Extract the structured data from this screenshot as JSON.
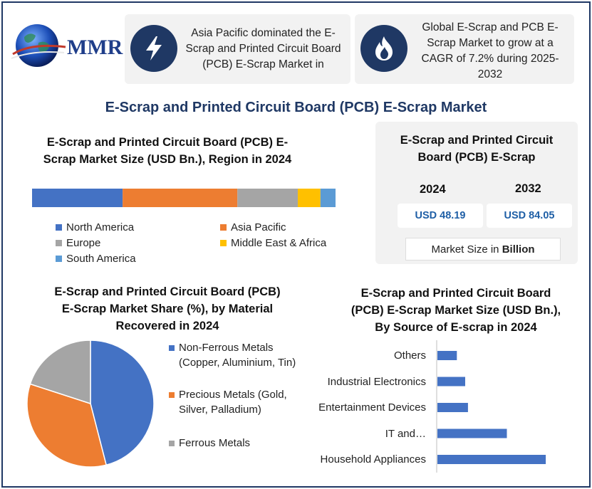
{
  "logo": {
    "text": "MMR",
    "icon": "globe-icon"
  },
  "info_boxes": [
    {
      "icon": "lightning-icon",
      "text": "Asia Pacific dominated the E-Scrap and Printed Circuit Board (PCB) E-Scrap Market in"
    },
    {
      "icon": "flame-icon",
      "text": "Global E-Scrap and PCB E-Scrap Market to grow at a CAGR of 7.2% during 2025-2032"
    }
  ],
  "main_title": "E-Scrap and Printed Circuit Board (PCB) E-Scrap Market",
  "region_section": {
    "title_line1": "E-Scrap and Printed Circuit Board (PCB) E-",
    "title_line2": "Scrap Market Size (USD Bn.), Region in 2024"
  },
  "market_panel": {
    "title_line1": "E-Scrap and Printed Circuit",
    "title_line2": "Board (PCB) E-Scrap",
    "year1": "2024",
    "year2": "2032",
    "value1": "USD 48.19",
    "value2": "USD 84.05",
    "size_label": "Market Size in ",
    "size_unit": "Billion"
  },
  "material_section": {
    "title_line1": "E-Scrap and Printed Circuit Board (PCB)",
    "title_line2": "E-Scrap Market Share (%), by Material",
    "title_line3": "Recovered in 2024"
  },
  "source_section": {
    "title_line1": "E-Scrap and Printed Circuit Board",
    "title_line2": "(PCB) E-Scrap Market Size (USD Bn.),",
    "title_line3": "By Source of E-scrap in 2024"
  },
  "chart_data": [
    {
      "type": "bar",
      "orientation": "horizontal-stacked",
      "title": "E-Scrap and Printed Circuit Board (PCB) E-Scrap Market Size (USD Bn.), Region in 2024",
      "series": [
        {
          "name": "North America",
          "value": 30,
          "color": "#4472c4"
        },
        {
          "name": "Asia Pacific",
          "value": 38,
          "color": "#ed7d31"
        },
        {
          "name": "Europe",
          "value": 20,
          "color": "#a5a5a5"
        },
        {
          "name": "Middle East & Africa",
          "value": 7.5,
          "color": "#ffc000"
        },
        {
          "name": "South America",
          "value": 5,
          "color": "#5b9bd5"
        }
      ],
      "legend": "bottom"
    },
    {
      "type": "pie",
      "title": "E-Scrap and Printed Circuit Board (PCB) E-Scrap Market Share (%), by Material Recovered in 2024",
      "slices": [
        {
          "name": "Non-Ferrous Metals (Copper, Aluminium, Tin)",
          "value": 46,
          "color": "#4472c4"
        },
        {
          "name": "Precious Metals (Gold, Silver, Palladium)",
          "value": 34,
          "color": "#ed7d31"
        },
        {
          "name": "Ferrous Metals",
          "value": 20,
          "color": "#a5a5a5"
        }
      ],
      "legend": "right"
    },
    {
      "type": "bar",
      "orientation": "horizontal",
      "title": "E-Scrap and Printed Circuit Board (PCB) E-Scrap Market Size (USD Bn.), By Source of E-scrap in 2024",
      "categories": [
        "Others",
        "Industrial Electronics",
        "Entertainment Devices",
        "IT and…",
        "Household Appliances"
      ],
      "values": [
        3.5,
        5,
        5.5,
        12.5,
        19.5
      ],
      "color": "#4472c4",
      "xlim": [
        0,
        25
      ]
    }
  ]
}
